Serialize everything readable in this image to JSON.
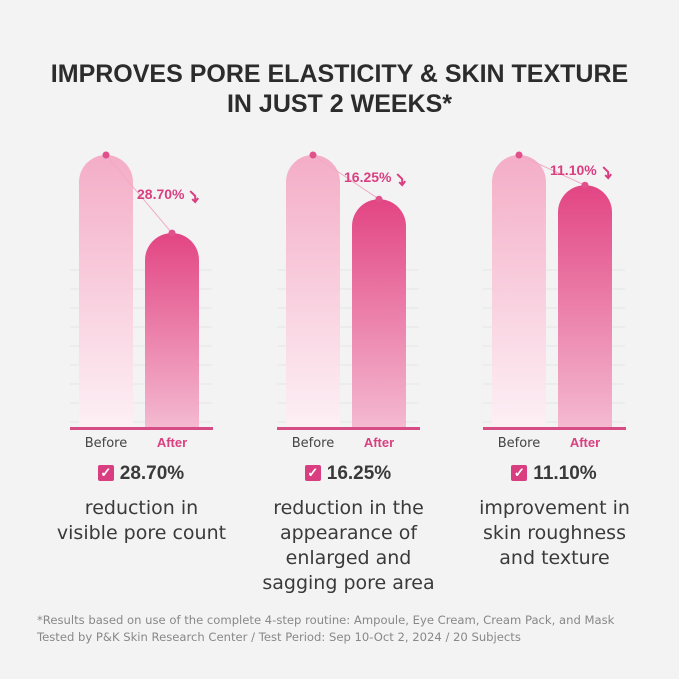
{
  "headline": {
    "line1": "IMPROVES PORE ELASTICITY & SKIN TEXTURE",
    "line2": "IN JUST 2 WEEKS*"
  },
  "colors": {
    "before": "#f4b6cc",
    "after": "#e04886",
    "after_label": "#d93f80",
    "baseline": "#d64d86"
  },
  "chart_data": [
    {
      "type": "bar",
      "categories": [
        "Before",
        "After"
      ],
      "values": [
        100,
        71.3
      ],
      "change_label": "28.70%",
      "result": "28.70%",
      "description": [
        "reduction in",
        "visible pore count"
      ]
    },
    {
      "type": "bar",
      "categories": [
        "Before",
        "After"
      ],
      "values": [
        100,
        83.75
      ],
      "change_label": "16.25%",
      "result": "16.25%",
      "description": [
        "reduction in the",
        "appearance of",
        "enlarged and",
        "sagging pore area"
      ]
    },
    {
      "type": "bar",
      "categories": [
        "Before",
        "After"
      ],
      "values": [
        100,
        88.9
      ],
      "change_label": "11.10%",
      "result": "11.10%",
      "description": [
        "improvement in",
        "skin roughness",
        "and texture"
      ]
    }
  ],
  "footnote": {
    "line1": "*Results based on use of the complete 4-step routine: Ampoule, Eye Cream, Cream Pack, and Mask",
    "line2": "Tested by P&K Skin Research Center / Test Period: Sep 10-Oct 2, 2024 / 20 Subjects"
  }
}
